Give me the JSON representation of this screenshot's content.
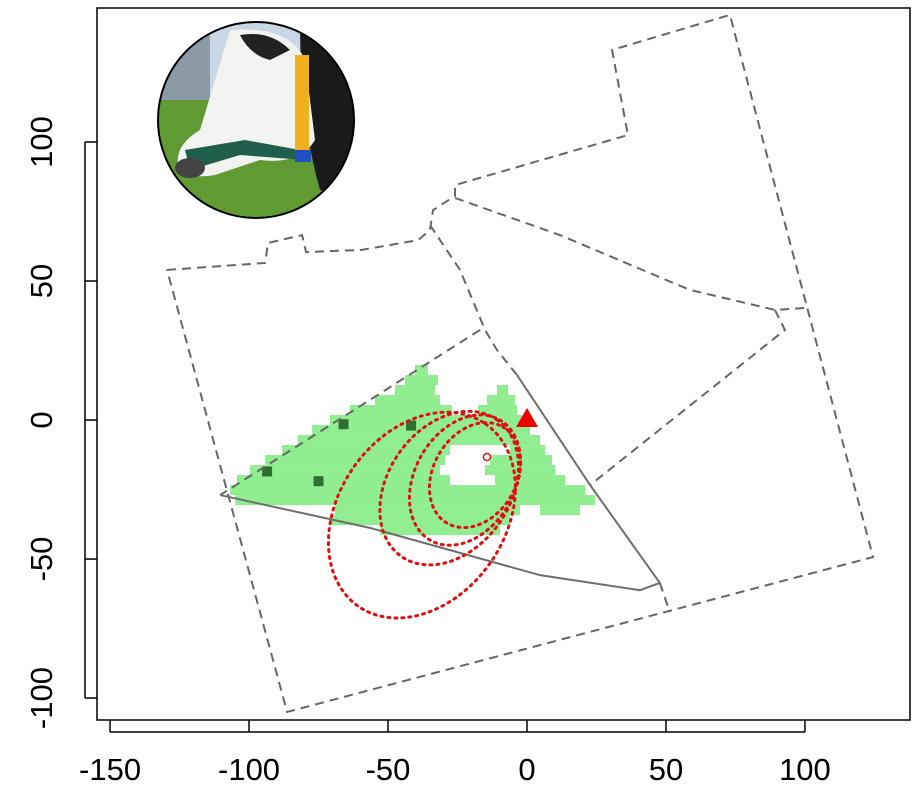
{
  "chart_data": {
    "type": "scatter",
    "xlim": [
      -154.7,
      137.8
    ],
    "ylim": [
      -107.9,
      148.2
    ],
    "xticks": [
      -150,
      -100,
      -50,
      0,
      50,
      100
    ],
    "yticks": [
      -100,
      -50,
      0,
      50,
      100
    ],
    "boundary": {
      "color": "#666666",
      "x": [
        -129.5,
        -94.2,
        -93.2,
        -80.9,
        -79.5,
        -59.4,
        -39.2,
        -34.9,
        -33.8,
        -25.9,
        -25.9,
        36.3,
        30.6,
        73.0,
        124.5,
        -86.3,
        -129.5
      ],
      "y": [
        54.0,
        56.5,
        63.7,
        66.5,
        60.4,
        61.2,
        64.7,
        68.3,
        75.5,
        80.6,
        84.5,
        102.5,
        133.1,
        145.7,
        -49.3,
        -105.0,
        54.0
      ]
    },
    "dashed_lines": [
      {
        "x": [
          -34.9,
          -24.1,
          -15.1,
          -10.8,
          -3.6
        ],
        "y": [
          70.1,
          54.0,
          32.4,
          25.2,
          16.2
        ]
      },
      {
        "x": [
          -25.9,
          11.9,
          58.6,
          89.2,
          100.0
        ],
        "y": [
          79.9,
          66.5,
          46.8,
          39.6,
          40.3
        ]
      },
      {
        "x": [
          89.2,
          92.8,
          22.7
        ],
        "y": [
          39.6,
          32.4,
          -23.4
        ]
      },
      {
        "x": [
          -16.9,
          -110.4
        ],
        "y": [
          32.4,
          -27.0
        ]
      },
      {
        "x": [
          47.8,
          51.4
        ],
        "y": [
          -58.6,
          -69.1
        ]
      }
    ],
    "solid_lines": {
      "color": "#6e6e6e",
      "items": [
        {
          "x": [
            -110.4,
            -56.5,
            -27.7,
            4.7,
            40.6,
            47.8
          ],
          "y": [
            -27.0,
            -38.8,
            -46.8,
            -55.8,
            -61.2,
            -58.6
          ]
        },
        {
          "x": [
            -3.6,
            22.7,
            47.8
          ],
          "y": [
            16.2,
            -23.4,
            -58.6
          ]
        }
      ]
    },
    "cells": {
      "color": "#90ee90",
      "height": 3.6,
      "rows": [
        [
          18,
          -40.3,
          -35.6
        ],
        [
          14.4,
          -43.9,
          -32.0
        ],
        [
          10.8,
          -47.5,
          -33.1
        ],
        [
          10.8,
          -10.8,
          -6.8
        ],
        [
          7.2,
          -54.7,
          -31.3
        ],
        [
          7.2,
          -14.4,
          -4.3
        ],
        [
          3.6,
          -63.7,
          -27.0
        ],
        [
          3.6,
          -17.6,
          -3.6
        ],
        [
          0,
          -70.9,
          -1.8
        ],
        [
          -3.6,
          -77.3,
          1.1
        ],
        [
          -7.2,
          -82.4,
          4.7
        ],
        [
          -10.8,
          -88.1,
          -27.7
        ],
        [
          -10.8,
          -6.1,
          6.5
        ],
        [
          -14.4,
          -94.2,
          -29.5
        ],
        [
          -14.4,
          -13.3,
          9.0
        ],
        [
          -18,
          -99.6,
          -31.3
        ],
        [
          -18,
          -15.1,
          10.1
        ],
        [
          -21.6,
          -104.3,
          -27.7
        ],
        [
          -21.6,
          -11.5,
          13.7
        ],
        [
          -25.2,
          -106.8,
          20.9
        ],
        [
          -28.8,
          -105.0,
          24.5
        ],
        [
          -32.4,
          -69.1,
          -2.5
        ],
        [
          -32.4,
          4.7,
          19.1
        ],
        [
          -36,
          -70.9,
          -6.1
        ],
        [
          -39.6,
          -52.9,
          -9.7
        ]
      ]
    },
    "dark_cells": {
      "color": "#2f6f2f",
      "size": 3.6,
      "points": [
        [
          -93.5,
          -18.5
        ],
        [
          -75,
          -22
        ],
        [
          -41.7,
          -2
        ],
        [
          -66,
          -1.5
        ]
      ]
    },
    "ellipses": {
      "color": "#dd1111",
      "items": [
        [
          -37.8,
          -34.2,
          40,
          30,
          55
        ],
        [
          -28,
          -24.5,
          30,
          22,
          55
        ],
        [
          -22.3,
          -21.6,
          25,
          18,
          60
        ],
        [
          -18.7,
          -19.8,
          20,
          15,
          60
        ]
      ]
    },
    "small_point": {
      "x": -14.4,
      "y": -13.3,
      "color": "#dd1111"
    },
    "point": {
      "x": 0,
      "y": 0,
      "color": "#ee0000"
    }
  }
}
